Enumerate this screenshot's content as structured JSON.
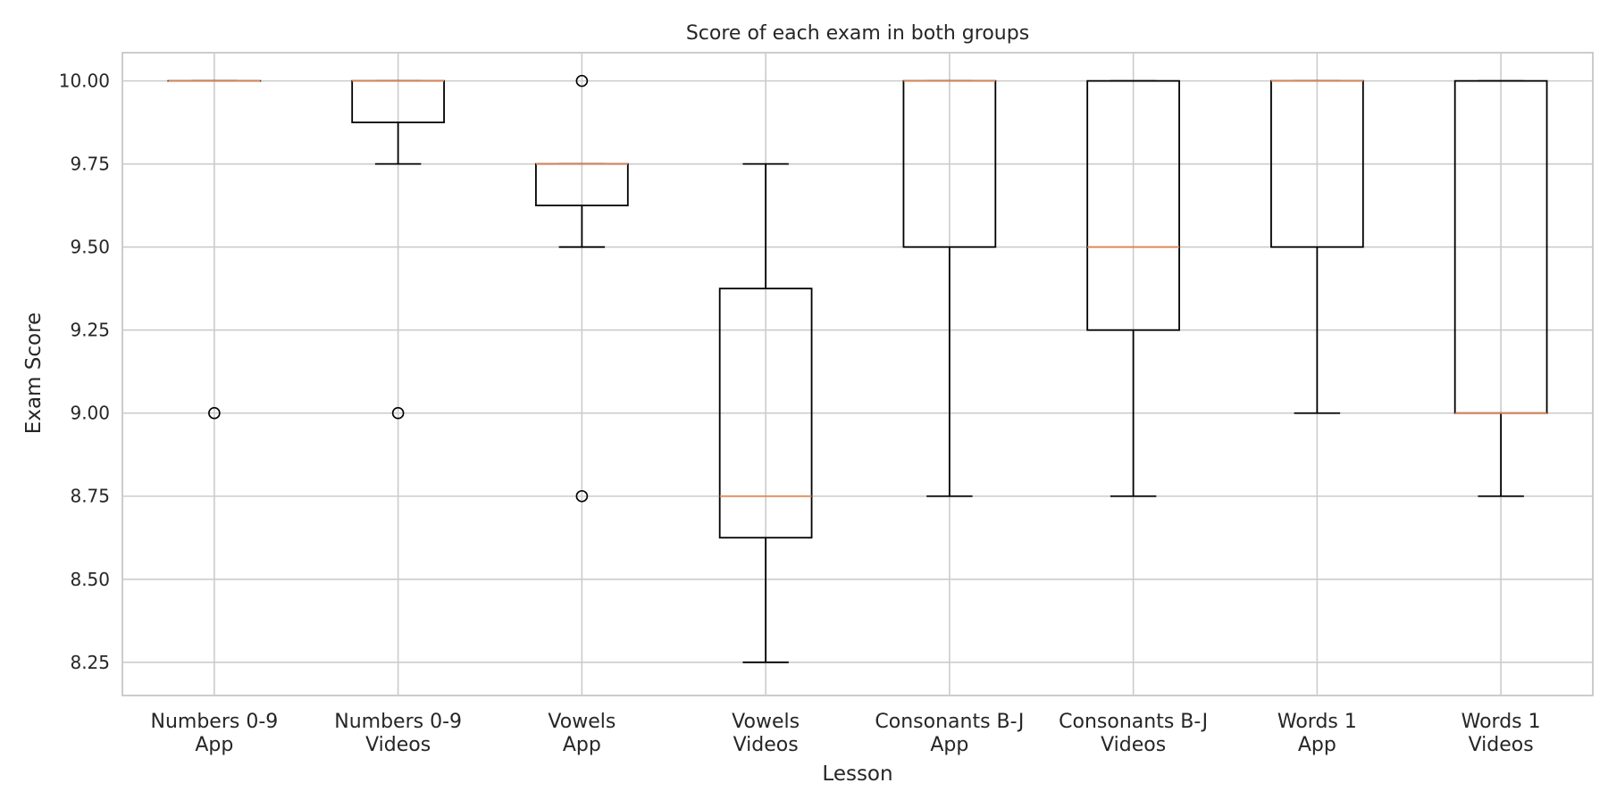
{
  "chart_data": {
    "type": "box",
    "title": "Score of each exam in both groups",
    "xlabel": "Lesson",
    "ylabel": "Exam Score",
    "ylim": [
      8.15,
      10.085
    ],
    "yticks": [
      "8.25",
      "8.50",
      "8.75",
      "9.00",
      "9.25",
      "9.50",
      "9.75",
      "10.00"
    ],
    "grid": true,
    "colors": {
      "grid": "#cccccc",
      "box": "#000000",
      "median": "#dd8452",
      "frame": "#cccccc"
    },
    "categories": [
      {
        "line1": "Numbers 0-9",
        "line2": "App",
        "whisker_low": 10.0,
        "q1": 10.0,
        "median": 10.0,
        "q3": 10.0,
        "whisker_high": 10.0,
        "outliers": [
          9.0
        ]
      },
      {
        "line1": "Numbers 0-9",
        "line2": "Videos",
        "whisker_low": 9.75,
        "q1": 9.875,
        "median": 10.0,
        "q3": 10.0,
        "whisker_high": 10.0,
        "outliers": [
          9.0
        ]
      },
      {
        "line1": "Vowels",
        "line2": "App",
        "whisker_low": 9.5,
        "q1": 9.625,
        "median": 9.75,
        "q3": 9.75,
        "whisker_high": 9.75,
        "outliers": [
          10.0,
          8.75
        ]
      },
      {
        "line1": "Vowels",
        "line2": "Videos",
        "whisker_low": 8.25,
        "q1": 8.625,
        "median": 8.75,
        "q3": 9.375,
        "whisker_high": 9.75,
        "outliers": []
      },
      {
        "line1": "Consonants B-J",
        "line2": "App",
        "whisker_low": 8.75,
        "q1": 9.5,
        "median": 10.0,
        "q3": 10.0,
        "whisker_high": 10.0,
        "outliers": []
      },
      {
        "line1": "Consonants B-J",
        "line2": "Videos",
        "whisker_low": 8.75,
        "q1": 9.25,
        "median": 9.5,
        "q3": 10.0,
        "whisker_high": 10.0,
        "outliers": []
      },
      {
        "line1": "Words 1",
        "line2": "App",
        "whisker_low": 9.0,
        "q1": 9.5,
        "median": 10.0,
        "q3": 10.0,
        "whisker_high": 10.0,
        "outliers": []
      },
      {
        "line1": "Words 1",
        "line2": "Videos",
        "whisker_low": 8.75,
        "q1": 9.0,
        "median": 9.0,
        "q3": 10.0,
        "whisker_high": 10.0,
        "outliers": []
      }
    ]
  }
}
